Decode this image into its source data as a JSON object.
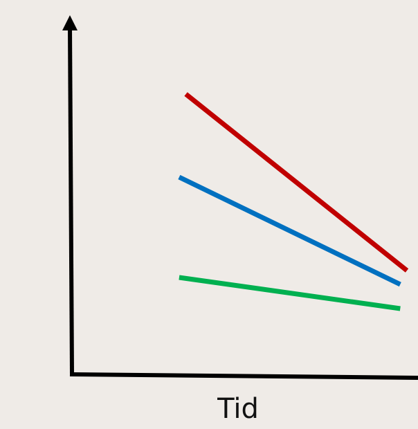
{
  "chart_data": {
    "type": "line",
    "title": "",
    "xlabel": "Tid",
    "ylabel": "",
    "grid": false,
    "legend": "none",
    "axis_color": "#000000",
    "x": [
      0.46,
      1.0
    ],
    "xlim": [
      0,
      1
    ],
    "ylim": [
      0,
      1
    ],
    "series": [
      {
        "color": "#c00000",
        "x": [
          0.34,
          1.0
        ],
        "y": [
          0.81,
          0.3
        ]
      },
      {
        "color": "#0070c0",
        "x": [
          0.32,
          0.98
        ],
        "y": [
          0.57,
          0.26
        ]
      },
      {
        "color": "#00b050",
        "x": [
          0.32,
          0.98
        ],
        "y": [
          0.28,
          0.19
        ]
      }
    ]
  }
}
